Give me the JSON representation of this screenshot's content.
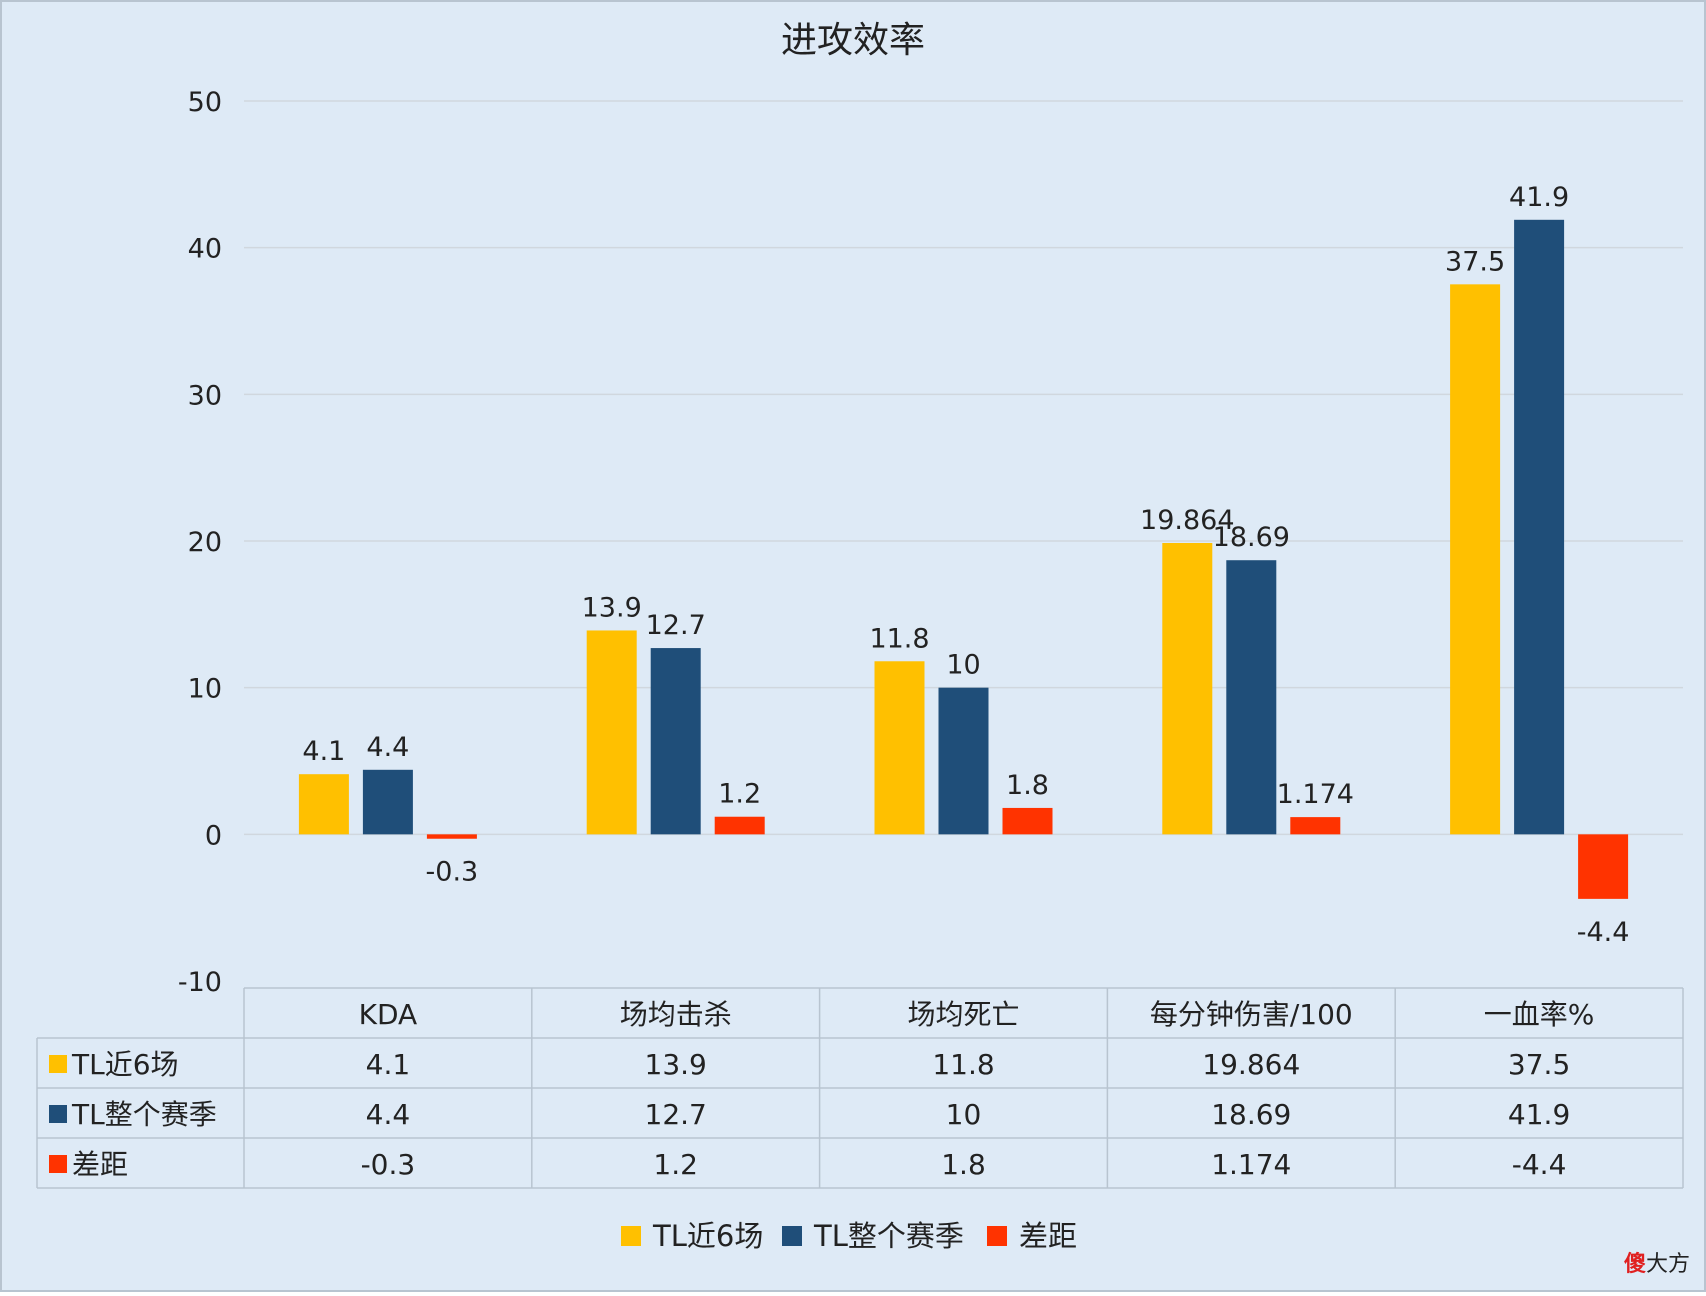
{
  "chart_data": {
    "type": "bar",
    "title": "进攻效率",
    "categories": [
      "KDA",
      "场均击杀",
      "场均死亡",
      "每分钟伤害/100",
      "一血率%"
    ],
    "series": [
      {
        "name": "TL近6场",
        "color": "#FFC000",
        "values": [
          4.1,
          13.9,
          11.8,
          19.864,
          37.5
        ]
      },
      {
        "name": "TL整个赛季",
        "color": "#1F4E79",
        "values": [
          4.4,
          12.7,
          10,
          18.69,
          41.9
        ]
      },
      {
        "name": "差距",
        "color": "#FF3300",
        "values": [
          -0.3,
          1.2,
          1.8,
          1.174,
          -4.4
        ]
      }
    ],
    "ylim": [
      -10,
      50
    ],
    "yticks": [
      50,
      40,
      30,
      20,
      10,
      0,
      -10
    ],
    "grid": true,
    "legend": "bottom",
    "data_table": true
  },
  "watermark": {
    "highlight": "傻",
    "rest": "大方"
  },
  "colors": {
    "background": "#DEEAF6",
    "grid": "#D0D7DE",
    "border": "#B8C4D0",
    "text": "#222222"
  }
}
